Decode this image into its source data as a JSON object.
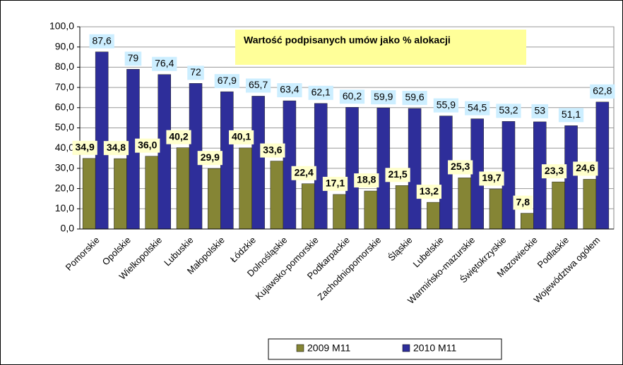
{
  "chart_data": {
    "type": "bar",
    "annotation": "Wartość podpisanych umów jako % alokacji",
    "categories": [
      "Pomorskie",
      "Opolskie",
      "Wielkopolskie",
      "Lubuskie",
      "Małopolskie",
      "Łódzkie",
      "Dolnośląskie",
      "Kujawsko-pomorskie",
      "Podkarpackie",
      "Zachodniopomorskie",
      "Śląskie",
      "Lubelskie",
      "Warmińsko-mazurskie",
      "Świętokrzyskie",
      "Mazowieckie",
      "Podlaskie",
      "Województwa ogółem"
    ],
    "series": [
      {
        "name": "2009 M11",
        "color": "#858535",
        "label_color": "#ffffcc",
        "values": [
          34.9,
          34.8,
          36.0,
          40.2,
          29.9,
          40.1,
          33.6,
          22.4,
          17.1,
          18.8,
          21.5,
          13.2,
          25.3,
          19.7,
          7.8,
          23.3,
          24.6
        ],
        "value_labels": [
          "34,9",
          "34,8",
          "36,0",
          "40,2",
          "29,9",
          "40,1",
          "33,6",
          "22,4",
          "17,1",
          "18,8",
          "21,5",
          "13,2",
          "25,3",
          "19,7",
          "7,8",
          "23,3",
          "24,6"
        ]
      },
      {
        "name": "2010 M11",
        "color": "#2e2e9a",
        "label_color": "#cceeff",
        "values": [
          87.6,
          79,
          76.4,
          72,
          67.9,
          65.7,
          63.4,
          62.1,
          60.2,
          59.9,
          59.6,
          55.9,
          54.5,
          53.2,
          53,
          51.1,
          62.8
        ],
        "value_labels": [
          "87,6",
          "79",
          "76,4",
          "72",
          "67,9",
          "65,7",
          "63,4",
          "62,1",
          "60,2",
          "59,9",
          "59,6",
          "55,9",
          "54,5",
          "53,2",
          "53",
          "51,1",
          "62,8"
        ]
      }
    ],
    "ylim": [
      0,
      100
    ],
    "yticks": [
      {
        "value": 0,
        "label": "0,0"
      },
      {
        "value": 10,
        "label": "10,0"
      },
      {
        "value": 20,
        "label": "20,0"
      },
      {
        "value": 30,
        "label": "30,0"
      },
      {
        "value": 40,
        "label": "40,0"
      },
      {
        "value": 50,
        "label": "50,0"
      },
      {
        "value": 60,
        "label": "60,0"
      },
      {
        "value": 70,
        "label": "70,0"
      },
      {
        "value": 80,
        "label": "80,0"
      },
      {
        "value": 90,
        "label": "90,0"
      },
      {
        "value": 100,
        "label": "100,0"
      }
    ],
    "grid": true
  }
}
